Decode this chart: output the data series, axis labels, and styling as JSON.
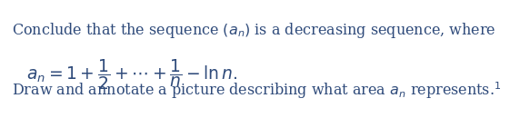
{
  "line1": "Conclude that the sequence $(a_n)$ is a decreasing sequence, where",
  "line2": "$a_n = 1 + \\dfrac{1}{2} + \\cdots + \\dfrac{1}{n} - \\ln n.$",
  "line3": "Draw and annotate a picture describing what area $a_n$ represents.$^1$",
  "text_color": "#2e4a7a",
  "bg_color": "#ffffff",
  "fontsize_main": 11.5,
  "fontsize_math": 13.5
}
